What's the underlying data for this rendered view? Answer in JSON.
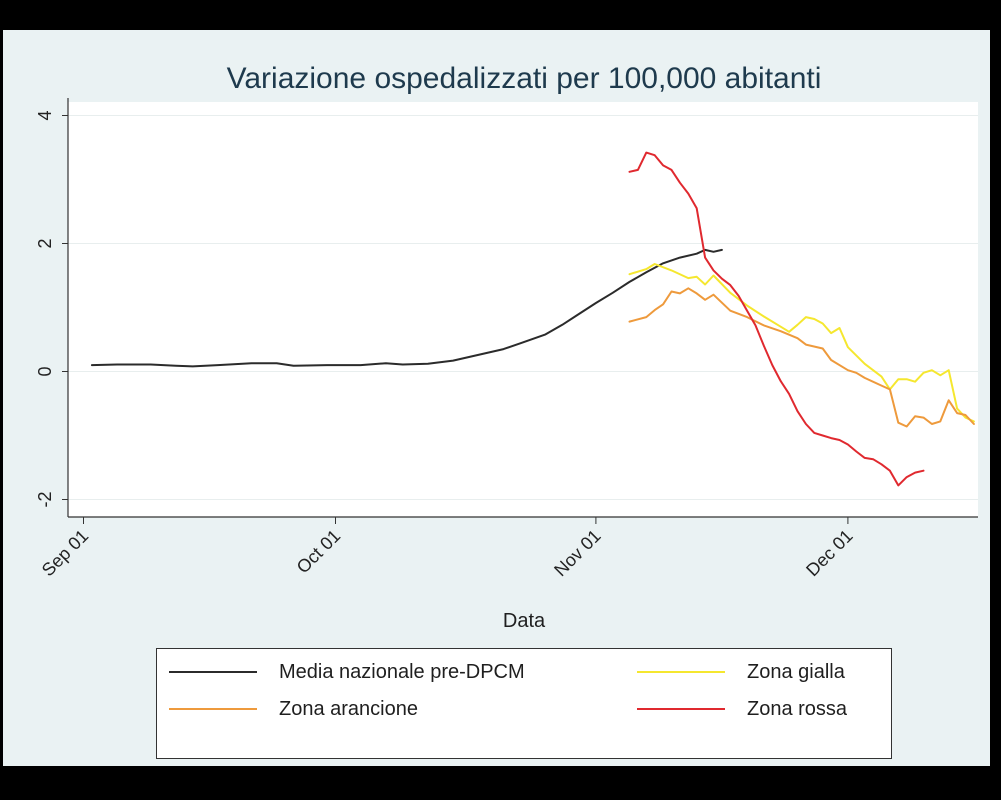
{
  "chart_data": {
    "type": "line",
    "title": "Variazione ospedalizzati per 100,000 abitanti",
    "xlabel": "Data",
    "ylabel": "",
    "x_ticks": [
      "Sep 01",
      "Oct 01",
      "Nov 01",
      "Dec 01"
    ],
    "y_ticks": [
      "4",
      "2",
      "0",
      "-2"
    ],
    "ylim": [
      -2,
      4
    ],
    "grid": true,
    "legend_position": "bottom",
    "series": [
      {
        "name": "Media nazionale pre-DPCM",
        "color": "#2b2b2b",
        "points": [
          [
            "2020-09-02",
            0.1
          ],
          [
            "2020-09-05",
            0.11
          ],
          [
            "2020-09-09",
            0.11
          ],
          [
            "2020-09-12",
            0.09
          ],
          [
            "2020-09-14",
            0.08
          ],
          [
            "2020-09-17",
            0.1
          ],
          [
            "2020-09-21",
            0.13
          ],
          [
            "2020-09-24",
            0.13
          ],
          [
            "2020-09-26",
            0.09
          ],
          [
            "2020-09-30",
            0.1
          ],
          [
            "2020-10-04",
            0.1
          ],
          [
            "2020-10-07",
            0.13
          ],
          [
            "2020-10-09",
            0.11
          ],
          [
            "2020-10-12",
            0.12
          ],
          [
            "2020-10-15",
            0.17
          ],
          [
            "2020-10-18",
            0.26
          ],
          [
            "2020-10-21",
            0.35
          ],
          [
            "2020-10-23",
            0.44
          ],
          [
            "2020-10-26",
            0.58
          ],
          [
            "2020-10-28",
            0.73
          ],
          [
            "2020-10-30",
            0.9
          ],
          [
            "2020-11-01",
            1.07
          ],
          [
            "2020-11-03",
            1.23
          ],
          [
            "2020-11-05",
            1.4
          ],
          [
            "2020-11-07",
            1.55
          ],
          [
            "2020-11-09",
            1.69
          ],
          [
            "2020-11-11",
            1.78
          ],
          [
            "2020-11-13",
            1.84
          ],
          [
            "2020-11-14",
            1.9
          ],
          [
            "2020-11-15",
            1.87
          ],
          [
            "2020-11-16",
            1.9
          ]
        ]
      },
      {
        "name": "Zona gialla",
        "color": "#f5e72f",
        "points": [
          [
            "2020-11-05",
            1.52
          ],
          [
            "2020-11-07",
            1.6
          ],
          [
            "2020-11-08",
            1.68
          ],
          [
            "2020-11-10",
            1.58
          ],
          [
            "2020-11-12",
            1.46
          ],
          [
            "2020-11-13",
            1.48
          ],
          [
            "2020-11-14",
            1.36
          ],
          [
            "2020-11-15",
            1.5
          ],
          [
            "2020-11-17",
            1.23
          ],
          [
            "2020-11-19",
            1.03
          ],
          [
            "2020-11-21",
            0.86
          ],
          [
            "2020-11-23",
            0.7
          ],
          [
            "2020-11-24",
            0.62
          ],
          [
            "2020-11-25",
            0.73
          ],
          [
            "2020-11-26",
            0.85
          ],
          [
            "2020-11-27",
            0.82
          ],
          [
            "2020-11-28",
            0.75
          ],
          [
            "2020-11-29",
            0.6
          ],
          [
            "2020-11-30",
            0.68
          ],
          [
            "2020-12-01",
            0.38
          ],
          [
            "2020-12-03",
            0.12
          ],
          [
            "2020-12-05",
            -0.08
          ],
          [
            "2020-12-06",
            -0.28
          ],
          [
            "2020-12-07",
            -0.12
          ],
          [
            "2020-12-08",
            -0.12
          ],
          [
            "2020-12-09",
            -0.16
          ],
          [
            "2020-12-10",
            -0.02
          ],
          [
            "2020-12-11",
            0.02
          ],
          [
            "2020-12-12",
            -0.06
          ],
          [
            "2020-12-13",
            0.02
          ],
          [
            "2020-12-14",
            -0.58
          ],
          [
            "2020-12-15",
            -0.72
          ],
          [
            "2020-12-16",
            -0.78
          ]
        ]
      },
      {
        "name": "Zona arancione",
        "color": "#ee9a3c",
        "points": [
          [
            "2020-11-05",
            0.78
          ],
          [
            "2020-11-07",
            0.85
          ],
          [
            "2020-11-08",
            0.96
          ],
          [
            "2020-11-09",
            1.05
          ],
          [
            "2020-11-10",
            1.25
          ],
          [
            "2020-11-11",
            1.22
          ],
          [
            "2020-11-12",
            1.3
          ],
          [
            "2020-11-13",
            1.22
          ],
          [
            "2020-11-14",
            1.12
          ],
          [
            "2020-11-15",
            1.2
          ],
          [
            "2020-11-17",
            0.95
          ],
          [
            "2020-11-19",
            0.85
          ],
          [
            "2020-11-21",
            0.72
          ],
          [
            "2020-11-23",
            0.63
          ],
          [
            "2020-11-25",
            0.52
          ],
          [
            "2020-11-26",
            0.42
          ],
          [
            "2020-11-28",
            0.36
          ],
          [
            "2020-11-29",
            0.18
          ],
          [
            "2020-12-01",
            0.02
          ],
          [
            "2020-12-02",
            -0.02
          ],
          [
            "2020-12-03",
            -0.1
          ],
          [
            "2020-12-05",
            -0.22
          ],
          [
            "2020-12-06",
            -0.28
          ],
          [
            "2020-12-07",
            -0.8
          ],
          [
            "2020-12-08",
            -0.86
          ],
          [
            "2020-12-09",
            -0.7
          ],
          [
            "2020-12-10",
            -0.72
          ],
          [
            "2020-12-11",
            -0.82
          ],
          [
            "2020-12-12",
            -0.78
          ],
          [
            "2020-12-13",
            -0.45
          ],
          [
            "2020-12-14",
            -0.65
          ],
          [
            "2020-12-15",
            -0.68
          ],
          [
            "2020-12-16",
            -0.82
          ]
        ]
      },
      {
        "name": "Zona rossa",
        "color": "#e0292f",
        "points": [
          [
            "2020-11-05",
            3.12
          ],
          [
            "2020-11-06",
            3.15
          ],
          [
            "2020-11-07",
            3.42
          ],
          [
            "2020-11-08",
            3.38
          ],
          [
            "2020-11-09",
            3.22
          ],
          [
            "2020-11-10",
            3.15
          ],
          [
            "2020-11-11",
            2.95
          ],
          [
            "2020-11-12",
            2.78
          ],
          [
            "2020-11-13",
            2.55
          ],
          [
            "2020-11-14",
            1.78
          ],
          [
            "2020-11-15",
            1.58
          ],
          [
            "2020-11-16",
            1.45
          ],
          [
            "2020-11-17",
            1.35
          ],
          [
            "2020-11-18",
            1.18
          ],
          [
            "2020-11-19",
            0.95
          ],
          [
            "2020-11-20",
            0.72
          ],
          [
            "2020-11-21",
            0.4
          ],
          [
            "2020-11-22",
            0.1
          ],
          [
            "2020-11-23",
            -0.15
          ],
          [
            "2020-11-24",
            -0.35
          ],
          [
            "2020-11-25",
            -0.62
          ],
          [
            "2020-11-26",
            -0.82
          ],
          [
            "2020-11-27",
            -0.96
          ],
          [
            "2020-11-28",
            -1.0
          ],
          [
            "2020-11-29",
            -1.04
          ],
          [
            "2020-11-30",
            -1.07
          ],
          [
            "2020-12-01",
            -1.14
          ],
          [
            "2020-12-02",
            -1.25
          ],
          [
            "2020-12-03",
            -1.35
          ],
          [
            "2020-12-04",
            -1.37
          ],
          [
            "2020-12-05",
            -1.45
          ],
          [
            "2020-12-06",
            -1.55
          ],
          [
            "2020-12-07",
            -1.78
          ],
          [
            "2020-12-08",
            -1.65
          ],
          [
            "2020-12-09",
            -1.58
          ],
          [
            "2020-12-10",
            -1.55
          ]
        ]
      }
    ],
    "legend_order": [
      "Media nazionale pre-DPCM",
      "Zona gialla",
      "Zona arancione",
      "Zona rossa"
    ]
  }
}
